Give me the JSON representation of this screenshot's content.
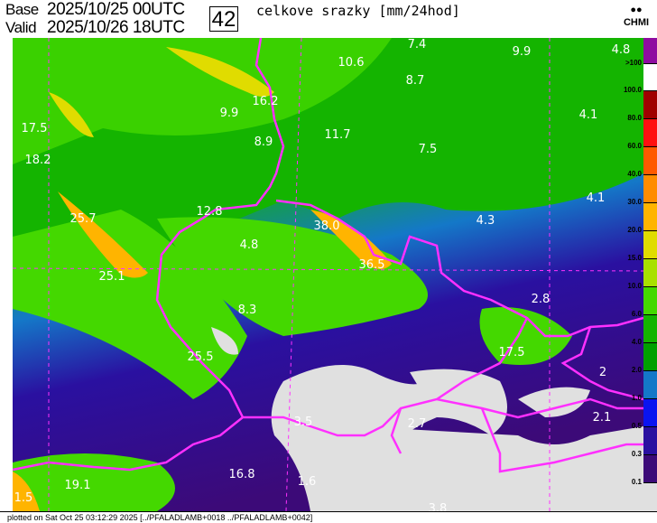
{
  "header": {
    "base_label": "Base",
    "base_value": "2025/10/25 00UTC",
    "valid_label": "Valid",
    "valid_value": "2025/10/26 18UTC",
    "forecast_hour": "42",
    "title": "celkove srazky [mm/24hod]",
    "logo_text": "CHMI"
  },
  "legend": {
    "labels": [
      ">100",
      "100.0",
      "80.0",
      "60.0",
      "40.0",
      "30.0",
      "20.0",
      "15.0",
      "10.0",
      "6.0",
      "4.0",
      "2.0",
      "1.0",
      "0.5",
      "0.3",
      "0.1"
    ],
    "colors": [
      "#8e0ca0",
      "#ffffff",
      "#a00000",
      "#ff1010",
      "#ff5a00",
      "#ff8c00",
      "#ffb400",
      "#e0dc00",
      "#a8e000",
      "#44d800",
      "#14b400",
      "#00a000",
      "#1478c8",
      "#0a14f0",
      "#2a10a0",
      "#3c0a78",
      "#e0e0e0"
    ]
  },
  "map_values": [
    "7.4",
    "10.6",
    "9.9",
    "4.8",
    "8.7",
    "16.2",
    "4.1",
    "17.5",
    "9.9",
    "11.7",
    "8.9",
    "7.5",
    "18.2",
    "4.1",
    "12.8",
    "25.7",
    "38.0",
    "4.3",
    "4.8",
    "36.5",
    "2.8",
    "25.1",
    "8.3",
    "17.5",
    "25.5",
    "2",
    "3.5",
    "2.7",
    "2.1",
    "16.8",
    "19.1",
    "1.6",
    "1.5",
    "3.8"
  ],
  "footer": "plotted on Sat Oct 25 03:12:29 2025  [../PFALADLAMB+0018 ../PFALADLAMB+0042]"
}
